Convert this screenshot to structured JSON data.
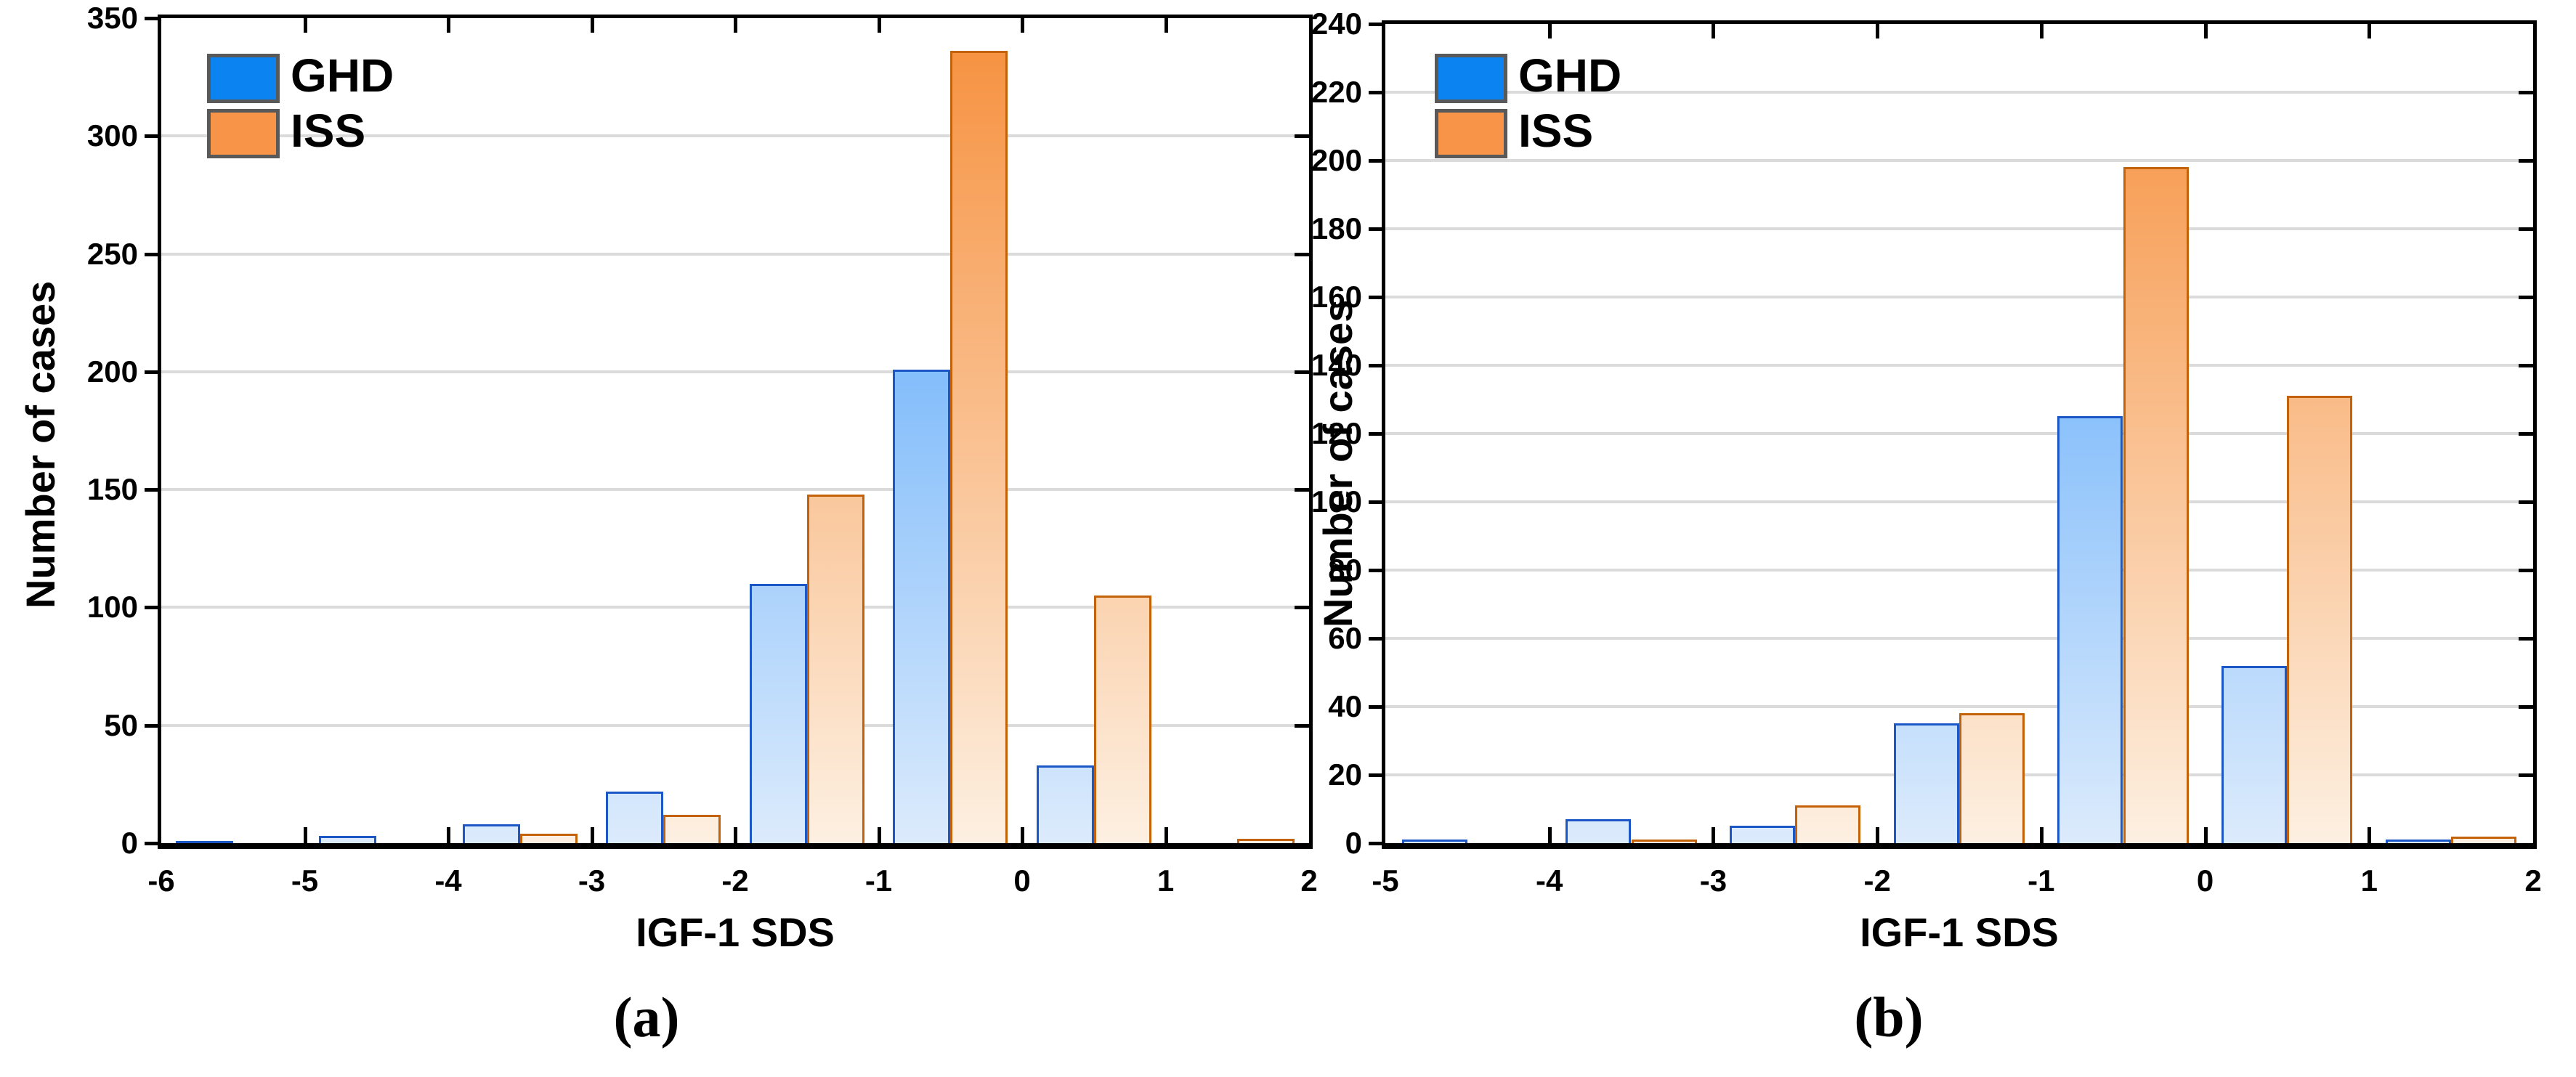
{
  "figure": {
    "background": "#ffffff"
  },
  "colors": {
    "ghd_fill_top": "#419BFA",
    "ghd_fill_bottom": "#DCEBFC",
    "ghd_border": "#1C57C8",
    "iss_fill_top": "#F68F3C",
    "iss_fill_bottom": "#FDF0E2",
    "iss_border": "#C4620A",
    "legend_ghd": "#0B84F2",
    "legend_iss": "#F79447",
    "gridline": "#DBDBDB",
    "frame": "#000000"
  },
  "chart_data": [
    {
      "id": "a",
      "type": "bar",
      "caption": "(a)",
      "xlabel": "IGF-1 SDS",
      "ylabel": "Number of cases",
      "xlim": [
        -6,
        2
      ],
      "ylim": [
        0,
        350
      ],
      "xticks": [
        -6,
        -5,
        -4,
        -3,
        -2,
        -1,
        0,
        1,
        2
      ],
      "yticks": [
        0,
        50,
        100,
        150,
        200,
        250,
        300,
        350
      ],
      "bin_edges": [
        -6,
        -5,
        -4,
        -3,
        -2,
        -1,
        0,
        1,
        2
      ],
      "categories": [
        "-6 to -5",
        "-5 to -4",
        "-4 to -3",
        "-3 to -2",
        "-2 to -1",
        "-1 to 0",
        "0 to 1",
        "1 to 2"
      ],
      "series": [
        {
          "name": "GHD",
          "values": [
            1,
            3,
            8,
            22,
            110,
            201,
            33,
            0
          ]
        },
        {
          "name": "ISS",
          "values": [
            0,
            0,
            4,
            12,
            148,
            336,
            105,
            2
          ]
        }
      ],
      "legend_position": "top-left",
      "grid": "horizontal"
    },
    {
      "id": "b",
      "type": "bar",
      "caption": "(b)",
      "xlabel": "IGF-1 SDS",
      "ylabel": "Number of cases",
      "xlim": [
        -5,
        2
      ],
      "ylim": [
        0,
        240
      ],
      "xticks": [
        -5,
        -4,
        -3,
        -2,
        -1,
        0,
        1,
        2
      ],
      "yticks": [
        0,
        20,
        40,
        60,
        80,
        100,
        120,
        140,
        160,
        180,
        200,
        220,
        240
      ],
      "bin_edges": [
        -5,
        -4,
        -3,
        -2,
        -1,
        0,
        1,
        2
      ],
      "categories": [
        "-5 to -4",
        "-4 to -3",
        "-3 to -2",
        "-2 to -1",
        "-1 to 0",
        "0 to 1",
        "1 to 2"
      ],
      "series": [
        {
          "name": "GHD",
          "values": [
            1,
            7,
            5,
            35,
            125,
            52,
            1
          ]
        },
        {
          "name": "ISS",
          "values": [
            0,
            1,
            11,
            38,
            198,
            131,
            2
          ]
        }
      ],
      "legend_position": "top-left",
      "grid": "horizontal"
    }
  ]
}
